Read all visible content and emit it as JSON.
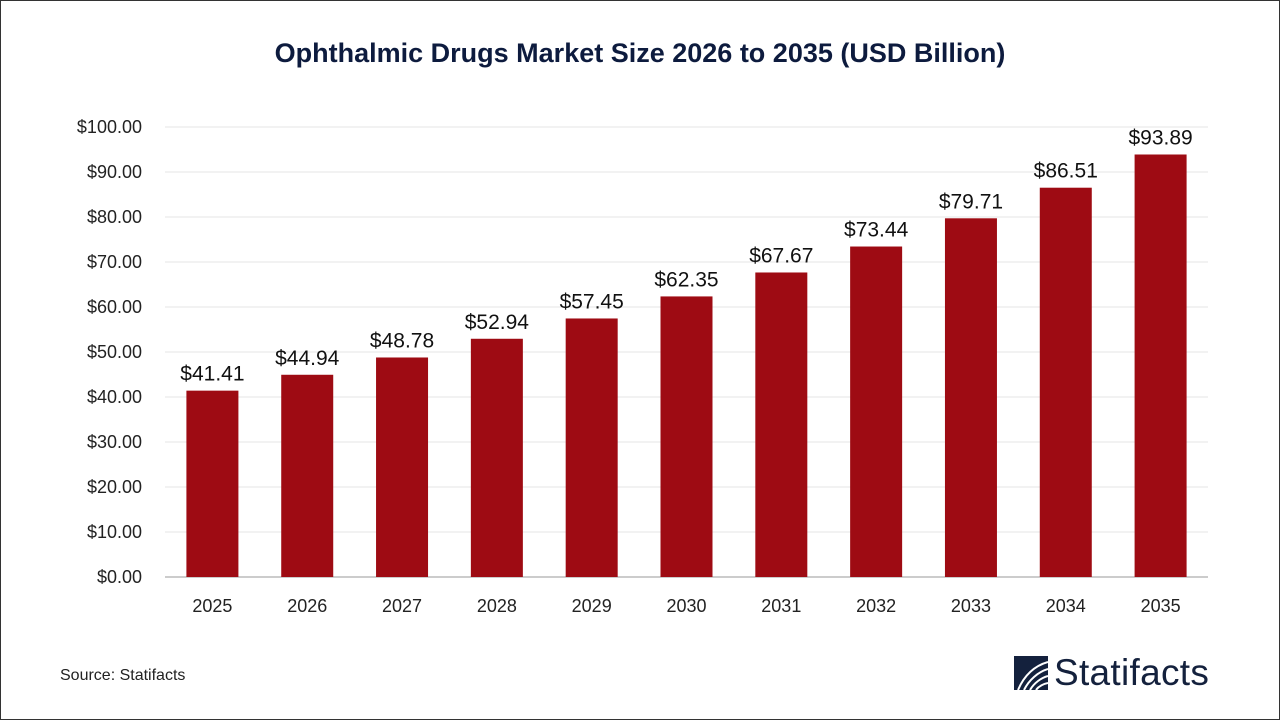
{
  "chart_data": {
    "type": "bar",
    "title": "Ophthalmic Drugs Market Size 2026 to 2035 (USD Billion)",
    "categories": [
      "2025",
      "2026",
      "2027",
      "2028",
      "2029",
      "2030",
      "2031",
      "2032",
      "2033",
      "2034",
      "2035"
    ],
    "values": [
      41.41,
      44.94,
      48.78,
      52.94,
      57.45,
      62.35,
      67.67,
      73.44,
      79.71,
      86.51,
      93.89
    ],
    "data_labels": [
      "$41.41",
      "$44.94",
      "$48.78",
      "$52.94",
      "$57.45",
      "$62.35",
      "$67.67",
      "$73.44",
      "$79.71",
      "$86.51",
      "$93.89"
    ],
    "y_ticks": [
      "$0.00",
      "$10.00",
      "$20.00",
      "$30.00",
      "$40.00",
      "$50.00",
      "$60.00",
      "$70.00",
      "$80.00",
      "$90.00",
      "$100.00"
    ],
    "ylim": [
      0,
      100
    ],
    "xlabel": "",
    "ylabel": "",
    "grid": true,
    "bar_color": "#9e0b13"
  },
  "source": "Source: Statifacts",
  "logo": {
    "text": "Statifacts",
    "color": "#14213d"
  }
}
